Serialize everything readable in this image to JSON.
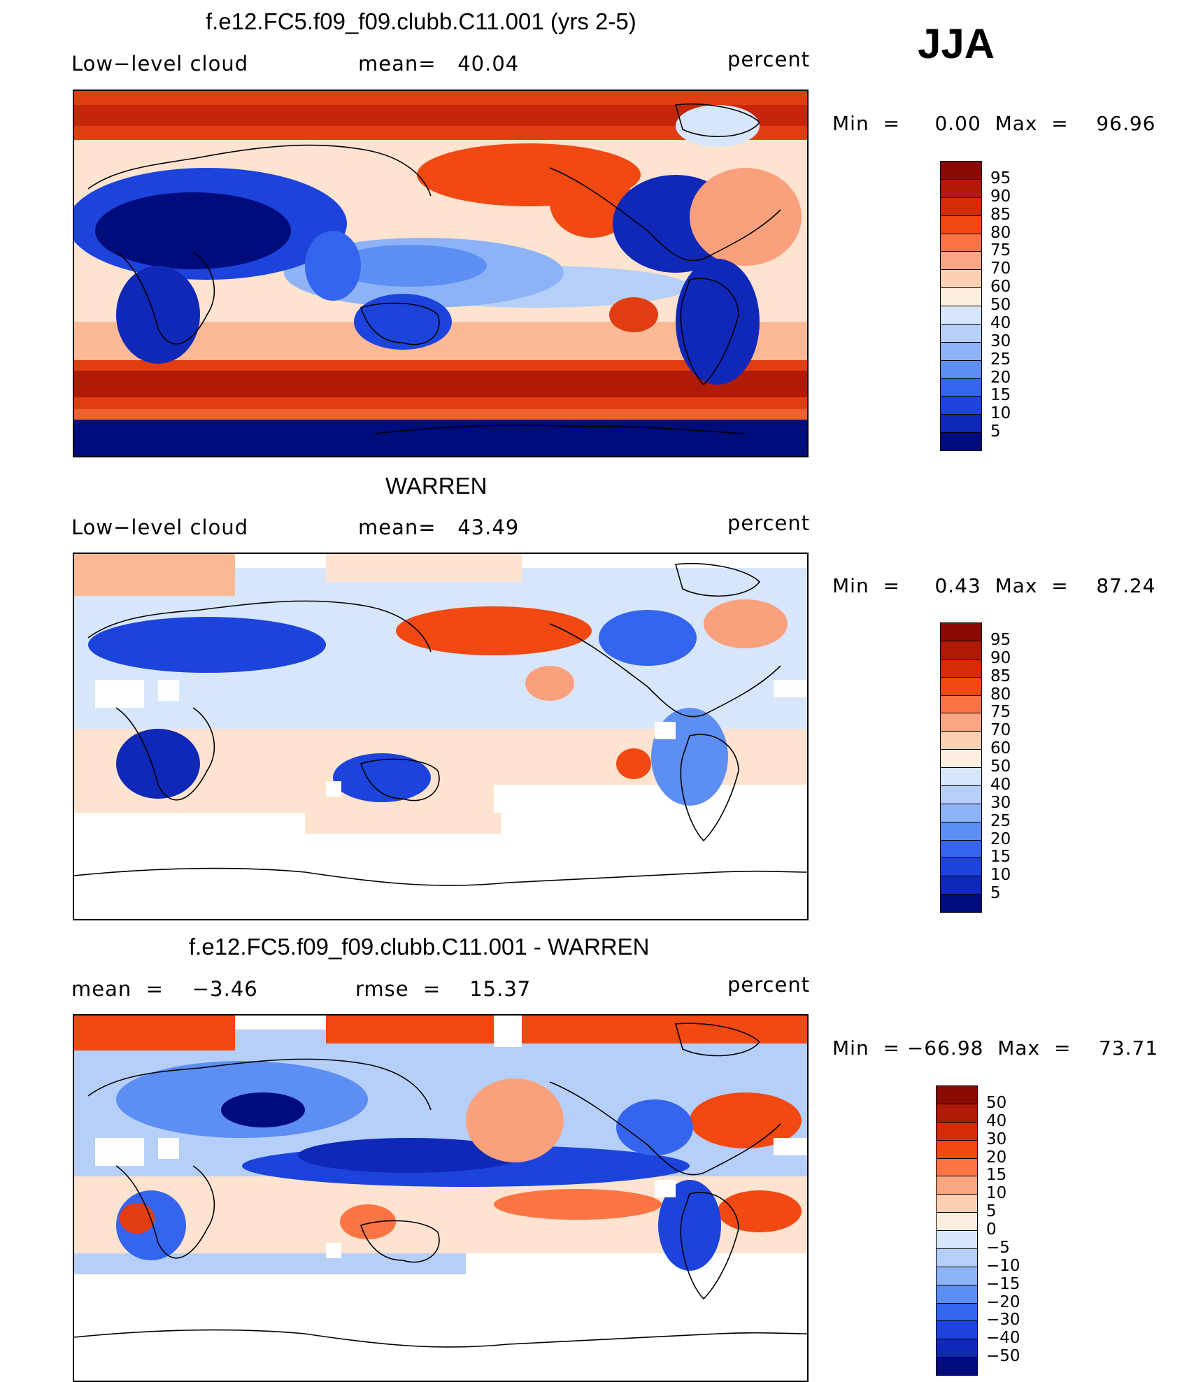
{
  "season": "JJA",
  "panels": [
    {
      "title": "f.e12.FC5.f09_f09.clubb.C11.001 (yrs 2-5)",
      "left_label": "Low−level cloud",
      "mid_label": "mean=   40.04",
      "units": "percent",
      "minmax": "Min  =     0.00  Max  =    96.96"
    },
    {
      "title": "WARREN",
      "left_label": "Low−level cloud",
      "mid_label": "mean=   43.49",
      "units": "percent",
      "minmax": "Min  =     0.43  Max  =    87.24"
    },
    {
      "title": "f.e12.FC5.f09_f09.clubb.C11.001 - WARREN",
      "left_label": "mean  =    −3.46",
      "mid_label": "rmse  =    15.37",
      "units": "percent",
      "minmax": "Min  = −66.98  Max  =    73.71"
    }
  ],
  "colorbars": {
    "absolute": {
      "labels": [
        "95",
        "90",
        "85",
        "80",
        "75",
        "70",
        "60",
        "50",
        "40",
        "30",
        "25",
        "20",
        "15",
        "10",
        "5"
      ],
      "colors": [
        "#8b0a04",
        "#b01a06",
        "#d42c05",
        "#f24812",
        "#fb7544",
        "#fca582",
        "#fdd0b4",
        "#fbeedf",
        "#d7e6fa",
        "#b5cff8",
        "#8db3f6",
        "#5d8ef3",
        "#3565ee",
        "#1c44dc",
        "#0f28b8",
        "#000c7c"
      ]
    },
    "difference": {
      "labels": [
        "50",
        "40",
        "30",
        "20",
        "15",
        "10",
        "5",
        "0",
        "−5",
        "−10",
        "−15",
        "−20",
        "−30",
        "−40",
        "−50"
      ],
      "colors": [
        "#8b0a04",
        "#b01a06",
        "#d42c05",
        "#f24812",
        "#fb7544",
        "#fca582",
        "#fdd0b4",
        "#fbeedf",
        "#d7e6fa",
        "#b5cff8",
        "#8db3f6",
        "#5d8ef3",
        "#3565ee",
        "#1c44dc",
        "#0f28b8",
        "#000c7c"
      ]
    }
  },
  "chart_data": [
    {
      "type": "heatmap",
      "title": "f.e12.FC5.f09_f09.clubb.C11.001 (yrs 2-5)",
      "variable": "Low-level cloud",
      "units": "percent",
      "mean": 40.04,
      "min": 0.0,
      "max": 96.96,
      "levels": [
        5,
        10,
        15,
        20,
        25,
        30,
        40,
        50,
        60,
        70,
        75,
        80,
        85,
        90,
        95
      ]
    },
    {
      "type": "heatmap",
      "title": "WARREN",
      "variable": "Low-level cloud",
      "units": "percent",
      "mean": 43.49,
      "min": 0.43,
      "max": 87.24,
      "levels": [
        5,
        10,
        15,
        20,
        25,
        30,
        40,
        50,
        60,
        70,
        75,
        80,
        85,
        90,
        95
      ]
    },
    {
      "type": "heatmap",
      "title": "f.e12.FC5.f09_f09.clubb.C11.001 - WARREN",
      "units": "percent",
      "mean": -3.46,
      "rmse": 15.37,
      "min": -66.98,
      "max": 73.71,
      "levels": [
        -50,
        -40,
        -30,
        -20,
        -15,
        -10,
        -5,
        0,
        5,
        10,
        15,
        20,
        30,
        40,
        50
      ]
    }
  ]
}
